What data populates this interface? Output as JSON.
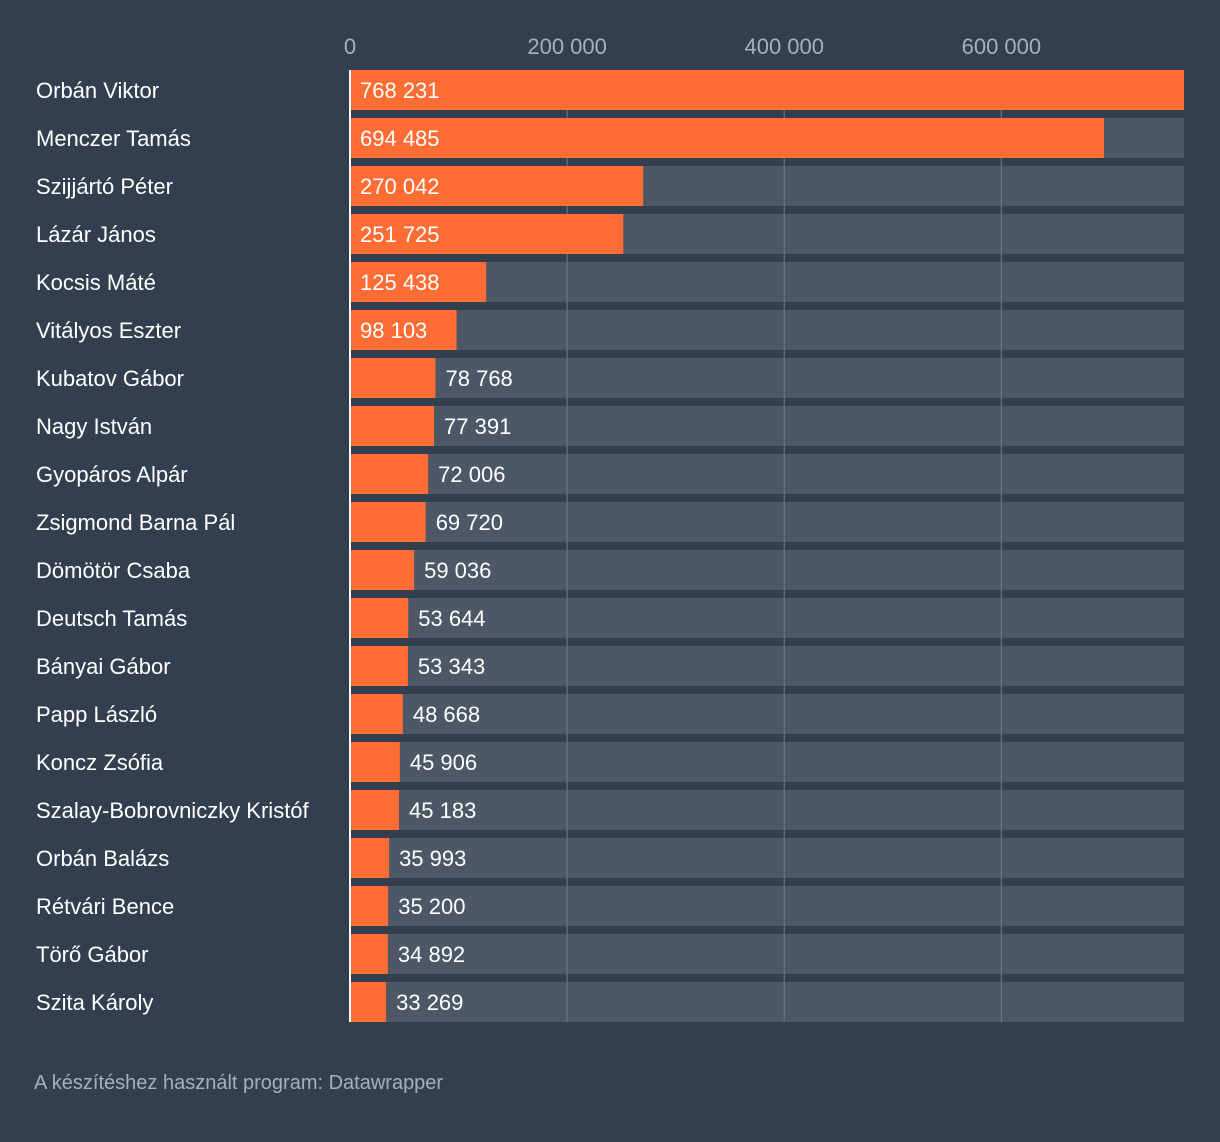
{
  "chart_data": {
    "type": "bar",
    "orientation": "horizontal",
    "categories": [
      "Orbán Viktor",
      "Menczer Tamás",
      "Szijjártó Péter",
      "Lázár János",
      "Kocsis Máté",
      "Vitályos Eszter",
      "Kubatov Gábor",
      "Nagy István",
      "Gyopáros Alpár",
      "Zsigmond Barna Pál",
      "Dömötör Csaba",
      "Deutsch Tamás",
      "Bányai Gábor",
      "Papp László",
      "Koncz Zsófia",
      "Szalay-Bobrovniczky Kristóf",
      "Orbán Balázs",
      "Rétvári Bence",
      "Törő Gábor",
      "Szita Károly"
    ],
    "values": [
      768231,
      694485,
      270042,
      251725,
      125438,
      98103,
      78768,
      77391,
      72006,
      69720,
      59036,
      53644,
      53343,
      48668,
      45906,
      45183,
      35993,
      35200,
      34892,
      33269
    ],
    "labels": [
      "768 231",
      "694 485",
      "270 042",
      "251 725",
      "125 438",
      "98 103",
      "78 768",
      "77 391",
      "72 006",
      "69 720",
      "59 036",
      "53 644",
      "53 343",
      "48 668",
      "45 906",
      "45 183",
      "35 993",
      "35 200",
      "34 892",
      "33 269"
    ],
    "xlim": [
      0,
      768231
    ],
    "ticks": [
      0,
      200000,
      400000,
      600000
    ],
    "tick_labels": [
      "0",
      "200 000",
      "400 000",
      "600 000"
    ],
    "axis_position": "top",
    "grid": true,
    "colors": {
      "bar": "#ff6d35",
      "track": "#4e5766",
      "background": "#333f4f",
      "text": "#ffffff",
      "tick_text": "#a7afba",
      "grid": "#6a7382"
    }
  },
  "footer": "A készítéshez használt program: Datawrapper"
}
